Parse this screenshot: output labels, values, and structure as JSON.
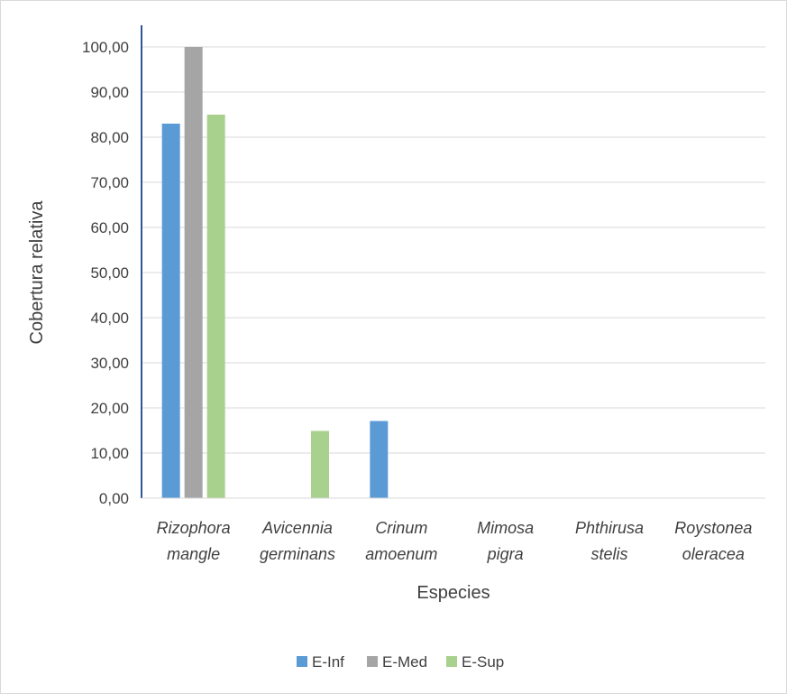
{
  "chart_data": {
    "type": "bar",
    "title": "",
    "xlabel": "Especies",
    "ylabel": "Cobertura relativa",
    "ylim": [
      0,
      100
    ],
    "yticks": [
      "0,00",
      "10,00",
      "20,00",
      "30,00",
      "40,00",
      "50,00",
      "60,00",
      "70,00",
      "80,00",
      "90,00",
      "100,00"
    ],
    "categories": [
      [
        "Rizophora",
        "mangle"
      ],
      [
        "Avicennia",
        "germinans"
      ],
      [
        "Crinum",
        "amoenum"
      ],
      [
        "Mimosa",
        "pigra"
      ],
      [
        "Phthirusa",
        "stelis"
      ],
      [
        "Roystonea",
        "oleracea"
      ]
    ],
    "series": [
      {
        "name": "E-Inf",
        "color": "#5b9bd5",
        "values": [
          83,
          0,
          17.1,
          0,
          0,
          0
        ]
      },
      {
        "name": "E-Med",
        "color": "#a5a5a5",
        "values": [
          100,
          0,
          0,
          0.1,
          0,
          0.1
        ]
      },
      {
        "name": "E-Sup",
        "color": "#a9d18e",
        "values": [
          85,
          14.9,
          0,
          0,
          0,
          0
        ]
      }
    ],
    "grid": true,
    "legend_position": "bottom"
  }
}
